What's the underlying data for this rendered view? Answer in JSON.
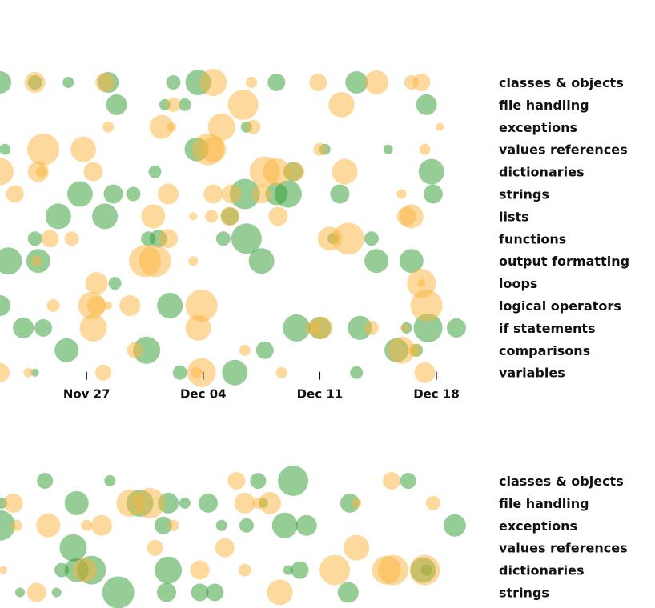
{
  "colors": {
    "green": "#2e9a2e",
    "orange": "#fbb33b",
    "text": "#111111"
  },
  "chart_data": [
    {
      "type": "scatter",
      "y_categories": [
        "classes & objects",
        "file handling",
        "exceptions",
        "values references",
        "dictionaries",
        "strings",
        "lists",
        "functions",
        "output formatting",
        "loops",
        "logical operators",
        "if statements",
        "comparisons",
        "variables"
      ],
      "x_ticks": [
        "Nov 27",
        "Dec 04",
        "Dec 11",
        "Dec 18"
      ],
      "x_tick_days": [
        0,
        7,
        14,
        21
      ],
      "xlim": [
        -5.2,
        22.2
      ],
      "grid": false,
      "series": [
        {
          "color": "green",
          "points": [
            [
              -5.2,
              0,
              14
            ],
            [
              -3.1,
              0,
              9
            ],
            [
              -1.1,
              0,
              7
            ],
            [
              1.3,
              0,
              13
            ],
            [
              5.2,
              0,
              9
            ],
            [
              6.7,
              0,
              16
            ],
            [
              11.4,
              0,
              11
            ],
            [
              16.2,
              0,
              14
            ],
            [
              1.8,
              1,
              13
            ],
            [
              4.7,
              1,
              7
            ],
            [
              5.9,
              1,
              8
            ],
            [
              20.4,
              1,
              13
            ],
            [
              9.6,
              2,
              7
            ],
            [
              -4.9,
              3,
              7
            ],
            [
              6.6,
              3,
              15
            ],
            [
              14.3,
              3,
              7
            ],
            [
              18.1,
              3,
              6
            ],
            [
              4.1,
              4,
              8
            ],
            [
              12.4,
              4,
              12
            ],
            [
              20.7,
              4,
              16
            ],
            [
              -0.4,
              5,
              16
            ],
            [
              1.6,
              5,
              12
            ],
            [
              2.8,
              5,
              9
            ],
            [
              9.5,
              5,
              19
            ],
            [
              11.4,
              5,
              14
            ],
            [
              12.1,
              5,
              17
            ],
            [
              15.2,
              5,
              12
            ],
            [
              20.8,
              5,
              12
            ],
            [
              -1.7,
              6,
              16
            ],
            [
              1.1,
              6,
              16
            ],
            [
              8.6,
              6,
              11
            ],
            [
              -3.1,
              7,
              9
            ],
            [
              3.7,
              7,
              9
            ],
            [
              4.3,
              7,
              11
            ],
            [
              8.2,
              7,
              9
            ],
            [
              9.6,
              7,
              19
            ],
            [
              14.8,
              7,
              7
            ],
            [
              17.1,
              7,
              9
            ],
            [
              -4.7,
              8,
              17
            ],
            [
              -2.9,
              8,
              15
            ],
            [
              10.5,
              8,
              16
            ],
            [
              17.4,
              8,
              15
            ],
            [
              19.5,
              8,
              15
            ],
            [
              1.7,
              9,
              8
            ],
            [
              -5.2,
              10,
              13
            ],
            [
              5.0,
              10,
              16
            ],
            [
              -3.8,
              11,
              13
            ],
            [
              -2.6,
              11,
              11
            ],
            [
              12.6,
              11,
              17
            ],
            [
              14.0,
              11,
              14
            ],
            [
              16.4,
              11,
              15
            ],
            [
              19.2,
              11,
              7
            ],
            [
              20.5,
              11,
              18
            ],
            [
              22.2,
              11,
              12
            ],
            [
              -1.2,
              12,
              15
            ],
            [
              3.6,
              12,
              17
            ],
            [
              10.7,
              12,
              11
            ],
            [
              18.6,
              12,
              15
            ],
            [
              19.8,
              12,
              8
            ],
            [
              -3.1,
              13,
              5
            ],
            [
              5.6,
              13,
              9
            ],
            [
              8.9,
              13,
              16
            ],
            [
              16.2,
              13,
              8
            ]
          ]
        },
        {
          "color": "orange",
          "points": [
            [
              -3.1,
              0,
              13
            ],
            [
              1.1,
              0,
              12
            ],
            [
              7.6,
              0,
              17
            ],
            [
              9.9,
              0,
              7
            ],
            [
              13.9,
              0,
              11
            ],
            [
              17.4,
              0,
              15
            ],
            [
              19.5,
              0,
              9
            ],
            [
              20.1,
              0,
              11
            ],
            [
              5.2,
              1,
              9
            ],
            [
              9.4,
              1,
              19
            ],
            [
              15.3,
              1,
              16
            ],
            [
              1.3,
              2,
              7
            ],
            [
              4.5,
              2,
              15
            ],
            [
              5.1,
              2,
              6
            ],
            [
              8.1,
              2,
              17
            ],
            [
              10.0,
              2,
              9
            ],
            [
              21.2,
              2,
              5
            ],
            [
              -2.6,
              3,
              20
            ],
            [
              -0.2,
              3,
              16
            ],
            [
              7.3,
              3,
              20
            ],
            [
              7.6,
              3,
              16
            ],
            [
              14.0,
              3,
              8
            ],
            [
              20.3,
              3,
              7
            ],
            [
              -5.2,
              4,
              17
            ],
            [
              -2.9,
              4,
              13
            ],
            [
              -2.7,
              4,
              7
            ],
            [
              0.4,
              4,
              12
            ],
            [
              10.7,
              4,
              19
            ],
            [
              11.4,
              4,
              17
            ],
            [
              12.5,
              4,
              12
            ],
            [
              15.5,
              4,
              16
            ],
            [
              -4.3,
              5,
              11
            ],
            [
              4.9,
              5,
              13
            ],
            [
              7.6,
              5,
              12
            ],
            [
              8.7,
              5,
              12
            ],
            [
              10.5,
              5,
              12
            ],
            [
              18.9,
              5,
              6
            ],
            [
              4.0,
              6,
              15
            ],
            [
              6.4,
              6,
              5
            ],
            [
              7.5,
              6,
              8
            ],
            [
              8.6,
              6,
              12
            ],
            [
              11.5,
              6,
              12
            ],
            [
              19.2,
              6,
              12
            ],
            [
              19.5,
              6,
              15
            ],
            [
              -2.2,
              7,
              11
            ],
            [
              -0.9,
              7,
              9
            ],
            [
              4.9,
              7,
              12
            ],
            [
              14.6,
              7,
              15
            ],
            [
              15.7,
              7,
              20
            ],
            [
              -3.0,
              8,
              7
            ],
            [
              3.5,
              8,
              20
            ],
            [
              4.1,
              8,
              20
            ],
            [
              6.4,
              8,
              6
            ],
            [
              0.6,
              9,
              14
            ],
            [
              20.1,
              9,
              18
            ],
            [
              20.1,
              9,
              5
            ],
            [
              -2.0,
              10,
              8
            ],
            [
              0.3,
              10,
              17
            ],
            [
              0.6,
              10,
              12
            ],
            [
              1.3,
              10,
              5
            ],
            [
              2.6,
              10,
              13
            ],
            [
              6.9,
              10,
              20
            ],
            [
              20.4,
              10,
              20
            ],
            [
              0.4,
              11,
              17
            ],
            [
              6.7,
              11,
              16
            ],
            [
              13.6,
              11,
              9
            ],
            [
              14.1,
              11,
              14
            ],
            [
              17.1,
              11,
              9
            ],
            [
              19.1,
              11,
              5
            ],
            [
              2.9,
              12,
              10
            ],
            [
              9.5,
              12,
              7
            ],
            [
              18.9,
              12,
              17
            ],
            [
              19.7,
              12,
              8
            ],
            [
              -5.2,
              13,
              12
            ],
            [
              -3.5,
              13,
              6
            ],
            [
              1.0,
              13,
              10
            ],
            [
              6.6,
              13,
              7
            ],
            [
              6.9,
              13,
              18
            ],
            [
              11.7,
              13,
              7
            ],
            [
              20.3,
              13,
              13
            ]
          ]
        }
      ]
    },
    {
      "type": "scatter",
      "y_categories": [
        "classes & objects",
        "file handling",
        "exceptions",
        "values references",
        "dictionaries",
        "strings"
      ],
      "xlim": [
        -5.2,
        22.2
      ],
      "grid": false,
      "series": [
        {
          "color": "green",
          "points": [
            [
              -2.5,
              0,
              10
            ],
            [
              1.4,
              0,
              7
            ],
            [
              10.3,
              0,
              10
            ],
            [
              12.4,
              0,
              19
            ],
            [
              19.3,
              0,
              10
            ],
            [
              -5.1,
              1,
              7
            ],
            [
              -0.6,
              1,
              15
            ],
            [
              3.2,
              1,
              17
            ],
            [
              4.9,
              1,
              13
            ],
            [
              5.9,
              1,
              7
            ],
            [
              7.3,
              1,
              12
            ],
            [
              10.6,
              1,
              6
            ],
            [
              15.8,
              1,
              12
            ],
            [
              -5.2,
              2,
              19
            ],
            [
              4.6,
              2,
              11
            ],
            [
              8.1,
              2,
              7
            ],
            [
              9.6,
              2,
              9
            ],
            [
              11.9,
              2,
              16
            ],
            [
              13.2,
              2,
              13
            ],
            [
              22.1,
              2,
              14
            ],
            [
              -0.8,
              3,
              17
            ],
            [
              -1.5,
              4,
              9
            ],
            [
              -0.6,
              4,
              15
            ],
            [
              0.3,
              4,
              18
            ],
            [
              4.9,
              4,
              17
            ],
            [
              12.1,
              4,
              6
            ],
            [
              12.8,
              4,
              11
            ],
            [
              20.2,
              4,
              16
            ],
            [
              20.4,
              4,
              7
            ],
            [
              -4.0,
              5,
              6
            ],
            [
              -1.8,
              5,
              6
            ],
            [
              1.9,
              5,
              20
            ],
            [
              4.8,
              5,
              12
            ],
            [
              6.8,
              5,
              11
            ],
            [
              7.7,
              5,
              11
            ],
            [
              15.7,
              5,
              13
            ]
          ]
        },
        {
          "color": "orange",
          "points": [
            [
              9.0,
              0,
              11
            ],
            [
              18.3,
              0,
              11
            ],
            [
              -4.4,
              1,
              12
            ],
            [
              2.6,
              1,
              17
            ],
            [
              3.8,
              1,
              19
            ],
            [
              10.3,
              1,
              7
            ],
            [
              9.5,
              1,
              13
            ],
            [
              11.0,
              1,
              14
            ],
            [
              16.2,
              1,
              6
            ],
            [
              20.8,
              1,
              9
            ],
            [
              -4.2,
              2,
              7
            ],
            [
              -2.3,
              2,
              15
            ],
            [
              0.0,
              2,
              7
            ],
            [
              0.9,
              2,
              13
            ],
            [
              5.2,
              2,
              7
            ],
            [
              4.1,
              3,
              10
            ],
            [
              8.3,
              3,
              12
            ],
            [
              16.2,
              3,
              16
            ],
            [
              -5.0,
              4,
              5
            ],
            [
              -0.1,
              4,
              15
            ],
            [
              6.8,
              4,
              12
            ],
            [
              9.5,
              4,
              8
            ],
            [
              14.9,
              4,
              19
            ],
            [
              18.0,
              4,
              18
            ],
            [
              18.4,
              4,
              19
            ],
            [
              20.3,
              4,
              19
            ],
            [
              -3.0,
              5,
              12
            ],
            [
              11.6,
              5,
              16
            ]
          ]
        }
      ]
    }
  ]
}
